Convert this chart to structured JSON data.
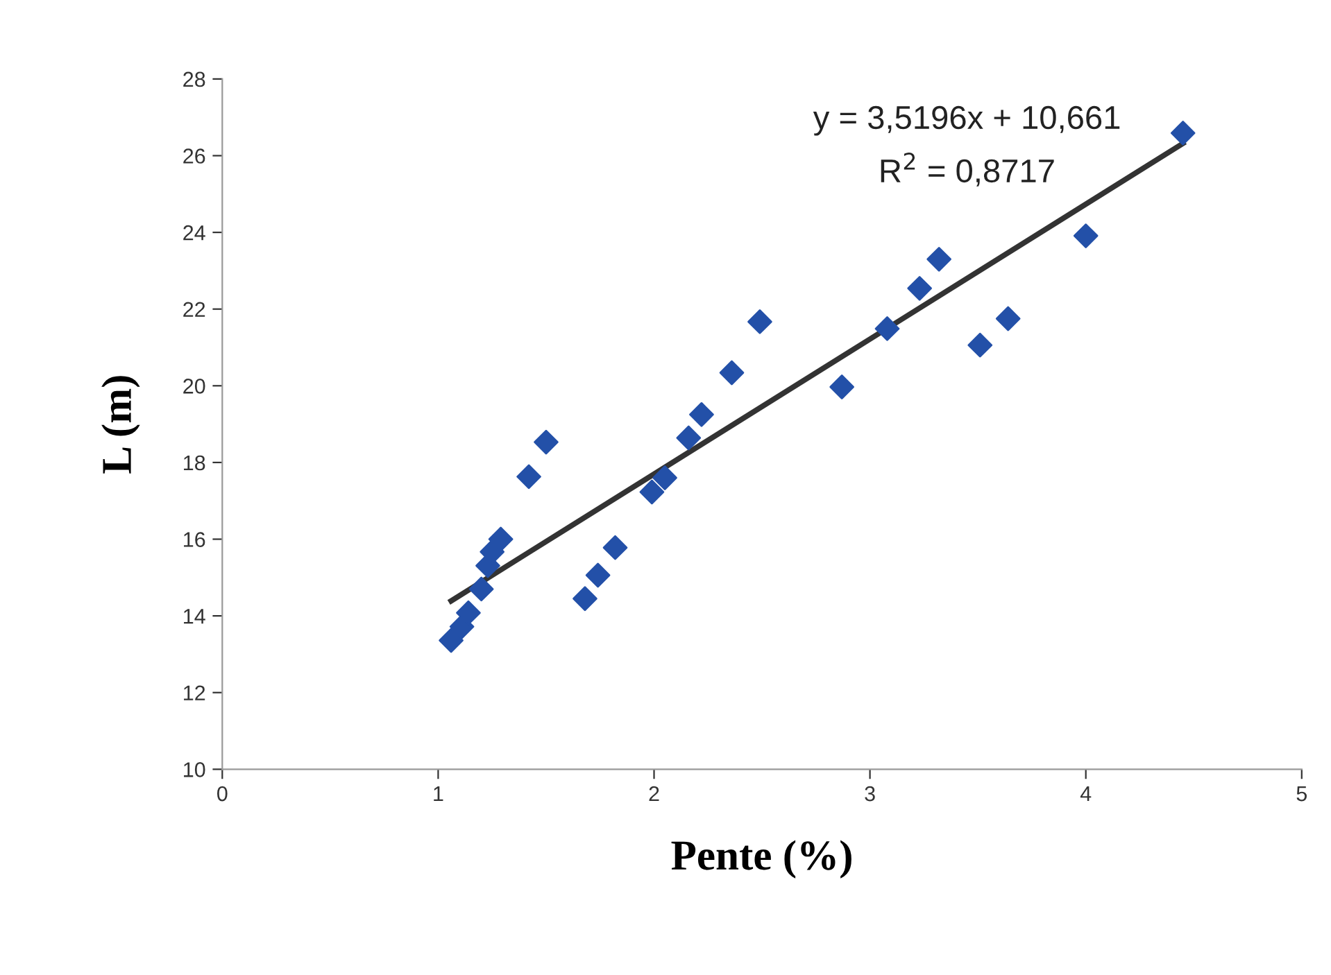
{
  "chart_data": {
    "type": "scatter",
    "xlabel": "Pente (%)",
    "ylabel": "L (m)",
    "xlim": [
      0,
      5
    ],
    "xticks": [
      0,
      1,
      2,
      3,
      4,
      5
    ],
    "ylim": [
      10,
      28
    ],
    "yticks": [
      10,
      12,
      14,
      16,
      18,
      20,
      22,
      24,
      26,
      28
    ],
    "grid": false,
    "legend": false,
    "marker": "diamond",
    "series": [
      {
        "color": "#2350a8",
        "x": [
          1.06,
          1.11,
          1.14,
          1.2,
          1.23,
          1.25,
          1.29,
          1.42,
          1.5,
          1.68,
          1.74,
          1.82,
          1.99,
          2.02,
          2.05,
          2.16,
          2.22,
          2.36,
          2.49,
          2.87,
          3.08,
          3.23,
          3.32,
          3.51,
          3.64,
          4.0,
          4.45
        ],
        "values": [
          13.36,
          13.72,
          14.08,
          14.7,
          15.31,
          15.67,
          16.0,
          17.63,
          18.53,
          14.45,
          15.06,
          15.78,
          17.23,
          null,
          17.6,
          18.64,
          19.25,
          20.34,
          21.67,
          19.97,
          21.49,
          22.54,
          23.3,
          21.06,
          21.75,
          23.91,
          26.59
        ]
      },
      {
        "type": "line",
        "color": "#333333",
        "line_style": "solid",
        "marker": "none",
        "x": [
          1.06,
          4.45
        ],
        "values": [
          14.39,
          26.32
        ]
      }
    ],
    "annotations": [
      "y = 3,5196x + 10,661",
      "R$^{2}$ = 0,8717"
    ]
  }
}
